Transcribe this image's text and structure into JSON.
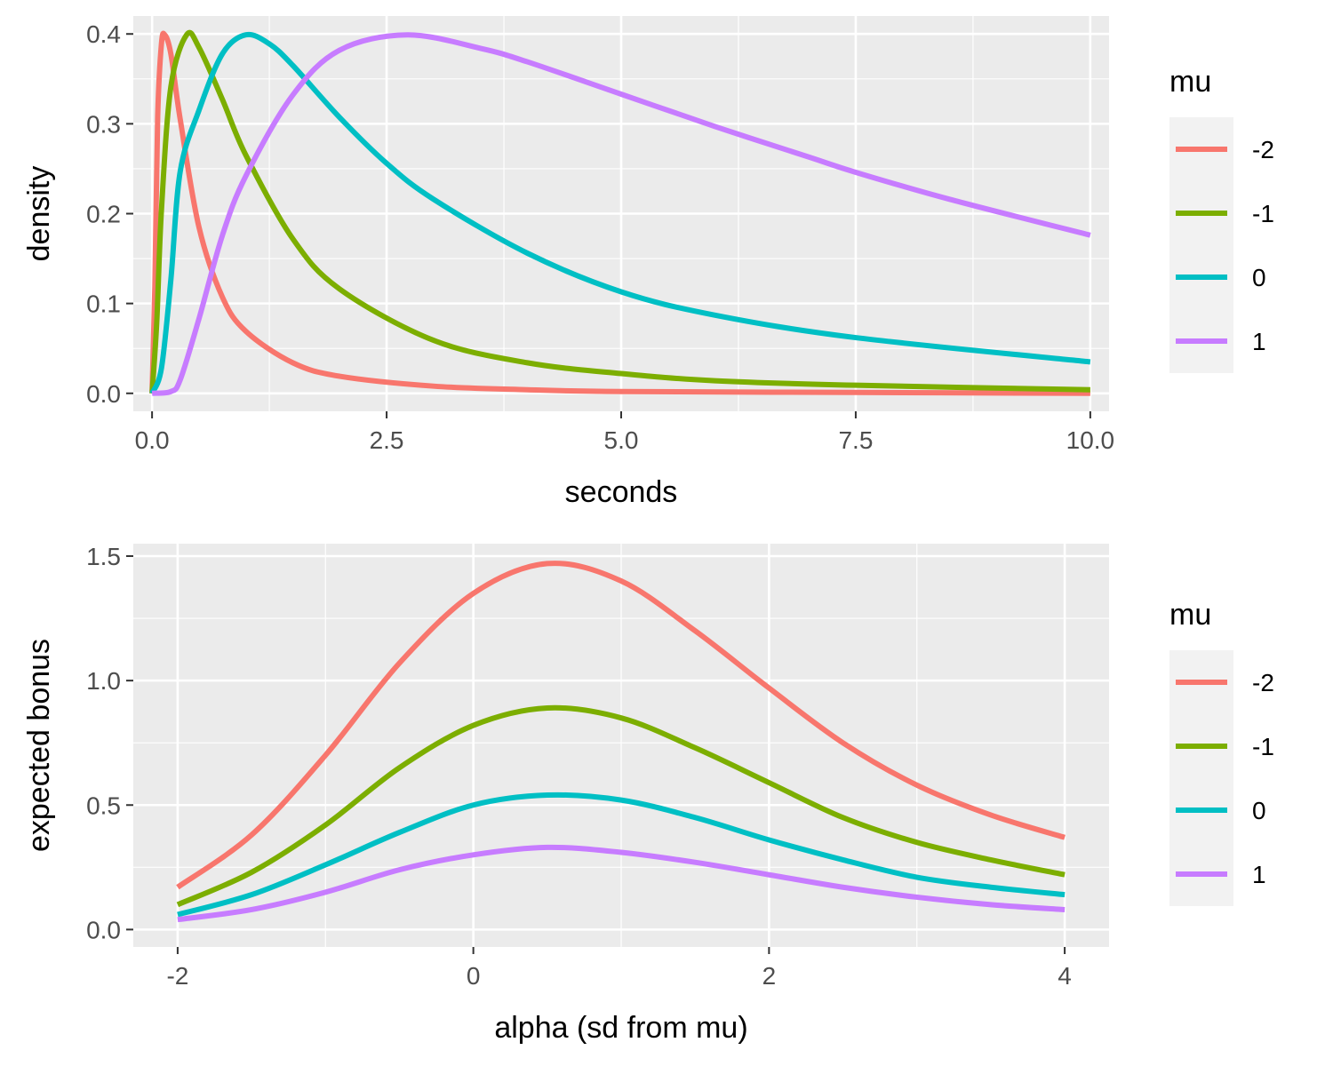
{
  "chart_data": [
    {
      "type": "line",
      "xlabel": "seconds",
      "ylabel": "density",
      "xlim": [
        -0.2,
        10.2
      ],
      "ylim": [
        -0.02,
        0.42
      ],
      "xticks": [
        0.0,
        2.5,
        5.0,
        7.5,
        10.0
      ],
      "xtick_labels": [
        "0.0",
        "2.5",
        "5.0",
        "7.5",
        "10.0"
      ],
      "yticks": [
        0.0,
        0.1,
        0.2,
        0.3,
        0.4
      ],
      "ytick_labels": [
        "0.0",
        "0.1",
        "0.2",
        "0.3",
        "0.4"
      ],
      "grid": true,
      "legend": {
        "title": "mu",
        "position": "right"
      },
      "series": [
        {
          "name": "-2",
          "color": "#F8766D",
          "x": [
            0,
            0.03,
            0.06,
            0.1,
            0.135,
            0.2,
            0.3,
            0.5,
            0.75,
            1.0,
            1.5,
            2.0,
            3.0,
            4.0,
            5.0,
            7.5,
            10.0
          ],
          "y": [
            0.0,
            0.119,
            0.308,
            0.389,
            0.399,
            0.378,
            0.305,
            0.185,
            0.107,
            0.069,
            0.034,
            0.019,
            0.008,
            0.004,
            0.002,
            0.001,
            0.0
          ]
        },
        {
          "name": "-1",
          "color": "#7CAE00",
          "x": [
            0,
            0.05,
            0.1,
            0.2,
            0.368,
            0.5,
            0.75,
            1.0,
            1.5,
            2.0,
            3.0,
            4.0,
            5.0,
            6.0,
            7.5,
            10.0
          ],
          "y": [
            0.0,
            0.079,
            0.204,
            0.341,
            0.399,
            0.385,
            0.327,
            0.265,
            0.172,
            0.116,
            0.059,
            0.034,
            0.022,
            0.014,
            0.009,
            0.004
          ]
        },
        {
          "name": "0",
          "color": "#00BFC4",
          "x": [
            0,
            0.1,
            0.2,
            0.3,
            0.5,
            0.75,
            1.0,
            1.25,
            1.5,
            2.0,
            2.5,
            3.0,
            4.0,
            5.0,
            6.0,
            7.5,
            10.0
          ],
          "y": [
            0.0,
            0.028,
            0.126,
            0.247,
            0.315,
            0.378,
            0.399,
            0.389,
            0.365,
            0.307,
            0.256,
            0.216,
            0.156,
            0.113,
            0.087,
            0.062,
            0.035
          ]
        },
        {
          "name": "1",
          "color": "#C77CFF",
          "x": [
            0,
            0.2,
            0.3,
            0.5,
            0.75,
            1.0,
            1.5,
            2.0,
            2.718,
            3.5,
            4.0,
            5.0,
            6.0,
            7.0,
            7.5,
            8.5,
            10.0
          ],
          "y": [
            0.0,
            0.002,
            0.015,
            0.083,
            0.176,
            0.242,
            0.332,
            0.382,
            0.399,
            0.384,
            0.369,
            0.333,
            0.297,
            0.263,
            0.246,
            0.216,
            0.176
          ]
        }
      ]
    },
    {
      "type": "line",
      "xlabel": "alpha (sd from mu)",
      "ylabel": "expected bonus",
      "xlim": [
        -2.3,
        4.3
      ],
      "ylim": [
        -0.07,
        1.55
      ],
      "xticks": [
        -2,
        0,
        2,
        4
      ],
      "xtick_labels": [
        "-2",
        "0",
        "2",
        "4"
      ],
      "yticks": [
        0.0,
        0.5,
        1.0,
        1.5
      ],
      "ytick_labels": [
        "0.0",
        "0.5",
        "1.0",
        "1.5"
      ],
      "grid": true,
      "legend": {
        "title": "mu",
        "position": "right"
      },
      "series": [
        {
          "name": "-2",
          "color": "#F8766D",
          "x": [
            -2,
            -1.5,
            -1,
            -0.5,
            0,
            0.5,
            1,
            1.5,
            2,
            2.5,
            3,
            3.5,
            4
          ],
          "y": [
            0.17,
            0.38,
            0.7,
            1.07,
            1.35,
            1.47,
            1.4,
            1.2,
            0.97,
            0.75,
            0.58,
            0.46,
            0.37
          ]
        },
        {
          "name": "-1",
          "color": "#7CAE00",
          "x": [
            -2,
            -1.5,
            -1,
            -0.5,
            0,
            0.5,
            1,
            1.5,
            2,
            2.5,
            3,
            3.5,
            4
          ],
          "y": [
            0.1,
            0.23,
            0.42,
            0.65,
            0.82,
            0.89,
            0.85,
            0.73,
            0.59,
            0.45,
            0.35,
            0.28,
            0.22
          ]
        },
        {
          "name": "0",
          "color": "#00BFC4",
          "x": [
            -2,
            -1.5,
            -1,
            -0.5,
            0,
            0.5,
            1,
            1.5,
            2,
            2.5,
            3,
            3.5,
            4
          ],
          "y": [
            0.06,
            0.14,
            0.26,
            0.39,
            0.5,
            0.54,
            0.52,
            0.45,
            0.36,
            0.28,
            0.21,
            0.17,
            0.14
          ]
        },
        {
          "name": "1",
          "color": "#C77CFF",
          "x": [
            -2,
            -1.5,
            -1,
            -0.5,
            0,
            0.5,
            1,
            1.5,
            2,
            2.5,
            3,
            3.5,
            4
          ],
          "y": [
            0.04,
            0.08,
            0.15,
            0.24,
            0.3,
            0.33,
            0.31,
            0.27,
            0.22,
            0.17,
            0.13,
            0.1,
            0.08
          ]
        }
      ]
    }
  ]
}
